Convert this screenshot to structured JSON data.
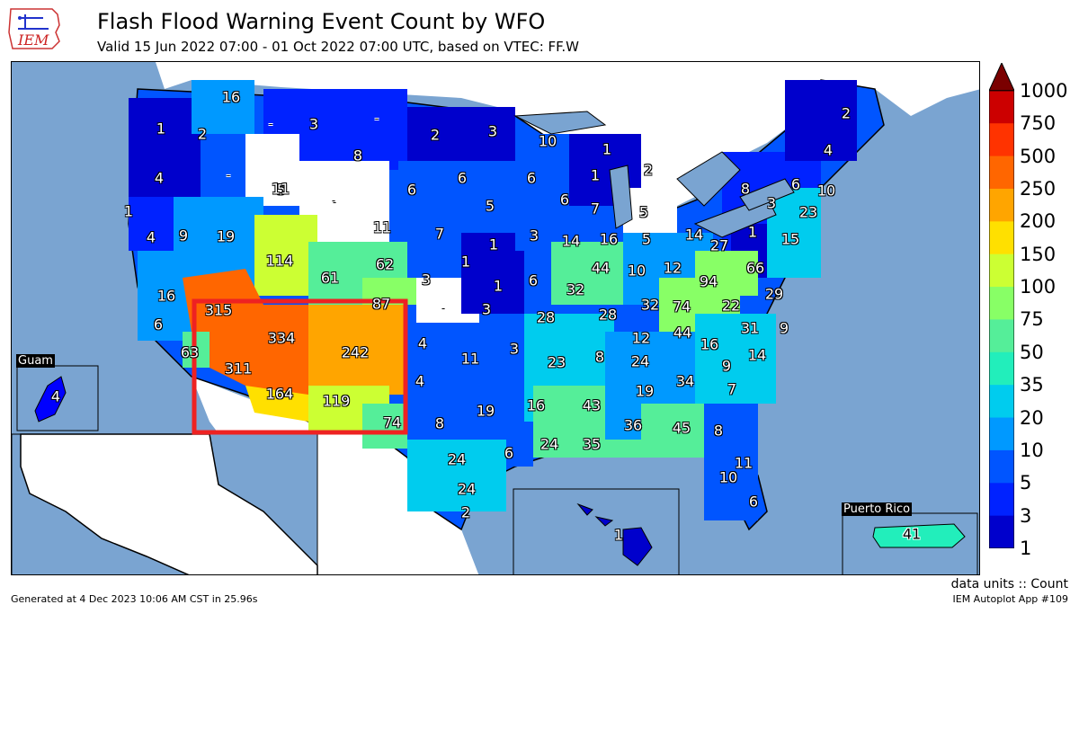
{
  "header": {
    "title": "Flash Flood Warning Event Count by WFO",
    "subtitle": "Valid 15 Jun 2022 07:00 - 01 Oct 2022 07:00 UTC, based on VTEC: FF.W",
    "logo_text": "IEM"
  },
  "colorbar": {
    "ticks": [
      "1000",
      "750",
      "500",
      "250",
      "200",
      "150",
      "100",
      "75",
      "50",
      "35",
      "20",
      "10",
      "5",
      "3",
      "1"
    ],
    "colors": [
      "#7a0000",
      "#cc0000",
      "#ff3300",
      "#ff6600",
      "#ffa500",
      "#ffe000",
      "#ccff33",
      "#88ff66",
      "#55ee99",
      "#22eebb",
      "#00ccee",
      "#0099ff",
      "#0055ff",
      "#0022ff",
      "#0000cc"
    ]
  },
  "insets": {
    "guam": {
      "label": "Guam",
      "count": "4"
    },
    "puerto_rico": {
      "label": "Puerto Rico",
      "count": "41"
    },
    "hawaii": {
      "count": "1"
    }
  },
  "wfo_counts": [
    {
      "v": "16",
      "c": "#0099ff"
    },
    {
      "v": "1",
      "c": "#0000cc"
    },
    {
      "v": "2",
      "c": "#0000cc"
    },
    {
      "v": "3",
      "c": "#0022ff"
    },
    {
      "v": "-",
      "c": "#ffffff"
    },
    {
      "v": "2",
      "c": "#0000cc"
    },
    {
      "v": "3",
      "c": "#0022ff"
    },
    {
      "v": "10",
      "c": "#0099ff"
    },
    {
      "v": "1",
      "c": "#0000cc"
    },
    {
      "v": "2",
      "c": "#0000cc"
    },
    {
      "v": "2",
      "c": "#0000cc"
    },
    {
      "v": "4",
      "c": "#0022ff"
    },
    {
      "v": "4",
      "c": "#0022ff"
    },
    {
      "v": "8",
      "c": "#0055ff"
    },
    {
      "v": "5",
      "c": "#0055ff"
    },
    {
      "v": "6",
      "c": "#0055ff"
    },
    {
      "v": "6",
      "c": "#0055ff"
    },
    {
      "v": "6",
      "c": "#0055ff"
    },
    {
      "v": "1",
      "c": "#0000cc"
    },
    {
      "v": "8",
      "c": "#0055ff"
    },
    {
      "v": "3",
      "c": "#0022ff"
    },
    {
      "v": "6",
      "c": "#0055ff"
    },
    {
      "v": "10",
      "c": "#0099ff"
    },
    {
      "v": "1",
      "c": "#0000cc"
    },
    {
      "v": "-",
      "c": "#ffffff"
    },
    {
      "v": "11",
      "c": "#0099ff"
    },
    {
      "v": "5",
      "c": "#0055ff"
    },
    {
      "v": "6",
      "c": "#0055ff"
    },
    {
      "v": "7",
      "c": "#0055ff"
    },
    {
      "v": "-",
      "c": "#ffffff"
    },
    {
      "v": "23",
      "c": "#00ccee"
    },
    {
      "v": "4",
      "c": "#0022ff"
    },
    {
      "v": "9",
      "c": "#0055ff"
    },
    {
      "v": "19",
      "c": "#0099ff"
    },
    {
      "v": "7",
      "c": "#0055ff"
    },
    {
      "v": "1",
      "c": "#0000cc"
    },
    {
      "v": "3",
      "c": "#0022ff"
    },
    {
      "v": "14",
      "c": "#0099ff"
    },
    {
      "v": "16",
      "c": "#0099ff"
    },
    {
      "v": "5",
      "c": "#0055ff"
    },
    {
      "v": "14",
      "c": "#0099ff"
    },
    {
      "v": "27",
      "c": "#00ccee"
    },
    {
      "v": "1",
      "c": "#0000cc"
    },
    {
      "v": "15",
      "c": "#0099ff"
    },
    {
      "v": "114",
      "c": "#ccff33"
    },
    {
      "v": "61",
      "c": "#55ee99"
    },
    {
      "v": "62",
      "c": "#55ee99"
    },
    {
      "v": "1",
      "c": "#0000cc"
    },
    {
      "v": "44",
      "c": "#55ee99"
    },
    {
      "v": "10",
      "c": "#0099ff"
    },
    {
      "v": "12",
      "c": "#0099ff"
    },
    {
      "v": "94",
      "c": "#88ff66"
    },
    {
      "v": "66",
      "c": "#88ff66"
    },
    {
      "v": "16",
      "c": "#0099ff"
    },
    {
      "v": "3",
      "c": "#0022ff"
    },
    {
      "v": "1",
      "c": "#0000cc"
    },
    {
      "v": "6",
      "c": "#0055ff"
    },
    {
      "v": "32",
      "c": "#00ccee"
    },
    {
      "v": "29",
      "c": "#00ccee"
    },
    {
      "v": "87",
      "c": "#88ff66"
    },
    {
      "v": "-",
      "c": "#ffffff"
    },
    {
      "v": "32",
      "c": "#00ccee"
    },
    {
      "v": "22",
      "c": "#00ccee"
    },
    {
      "v": "315",
      "c": "#ff6600"
    },
    {
      "v": "3",
      "c": "#0022ff"
    },
    {
      "v": "28",
      "c": "#00ccee"
    },
    {
      "v": "28",
      "c": "#00ccee"
    },
    {
      "v": "74",
      "c": "#88ff66"
    },
    {
      "v": "6",
      "c": "#0055ff"
    },
    {
      "v": "334",
      "c": "#ff6600"
    },
    {
      "v": "4",
      "c": "#0022ff"
    },
    {
      "v": "12",
      "c": "#0099ff"
    },
    {
      "v": "44",
      "c": "#55ee99"
    },
    {
      "v": "31",
      "c": "#00ccee"
    },
    {
      "v": "9",
      "c": "#0055ff"
    },
    {
      "v": "242",
      "c": "#ffa500"
    },
    {
      "v": "3",
      "c": "#0022ff"
    },
    {
      "v": "16",
      "c": "#0099ff"
    },
    {
      "v": "63",
      "c": "#55ee99"
    },
    {
      "v": "311",
      "c": "#ff6600"
    },
    {
      "v": "11",
      "c": "#0099ff"
    },
    {
      "v": "23",
      "c": "#00ccee"
    },
    {
      "v": "8",
      "c": "#0055ff"
    },
    {
      "v": "24",
      "c": "#00ccee"
    },
    {
      "v": "9",
      "c": "#0055ff"
    },
    {
      "v": "14",
      "c": "#0099ff"
    },
    {
      "v": "4",
      "c": "#0022ff"
    },
    {
      "v": "34",
      "c": "#00ccee"
    },
    {
      "v": "164",
      "c": "#ffe000"
    },
    {
      "v": "19",
      "c": "#0099ff"
    },
    {
      "v": "7",
      "c": "#0055ff"
    },
    {
      "v": "119",
      "c": "#ccff33"
    },
    {
      "v": "19",
      "c": "#0099ff"
    },
    {
      "v": "16",
      "c": "#0099ff"
    },
    {
      "v": "43",
      "c": "#55ee99"
    },
    {
      "v": "36",
      "c": "#55ee99"
    },
    {
      "v": "45",
      "c": "#55ee99"
    },
    {
      "v": "74",
      "c": "#88ff66"
    },
    {
      "v": "8",
      "c": "#0055ff"
    },
    {
      "v": "8",
      "c": "#0055ff"
    },
    {
      "v": "6",
      "c": "#0055ff"
    },
    {
      "v": "24",
      "c": "#00ccee"
    },
    {
      "v": "35",
      "c": "#22eebb"
    },
    {
      "v": "24",
      "c": "#00ccee"
    },
    {
      "v": "11",
      "c": "#0099ff"
    },
    {
      "v": "10",
      "c": "#0099ff"
    },
    {
      "v": "24",
      "c": "#00ccee"
    },
    {
      "v": "6",
      "c": "#0055ff"
    },
    {
      "v": "2",
      "c": "#0000cc"
    },
    {
      "v": "-",
      "c": "#ffffff"
    },
    {
      "v": "-",
      "c": "#ffffff"
    },
    {
      "v": "-",
      "c": "#ffffff"
    },
    {
      "v": "-",
      "c": "#ffffff"
    },
    {
      "v": "5",
      "c": "#0055ff"
    },
    {
      "v": "11",
      "c": "#0099ff"
    }
  ],
  "footer": {
    "generated": "Generated at 4 Dec 2023 10:06 AM CST in 25.96s",
    "app": "IEM Autoplot App #109",
    "units": "data units :: Count"
  }
}
